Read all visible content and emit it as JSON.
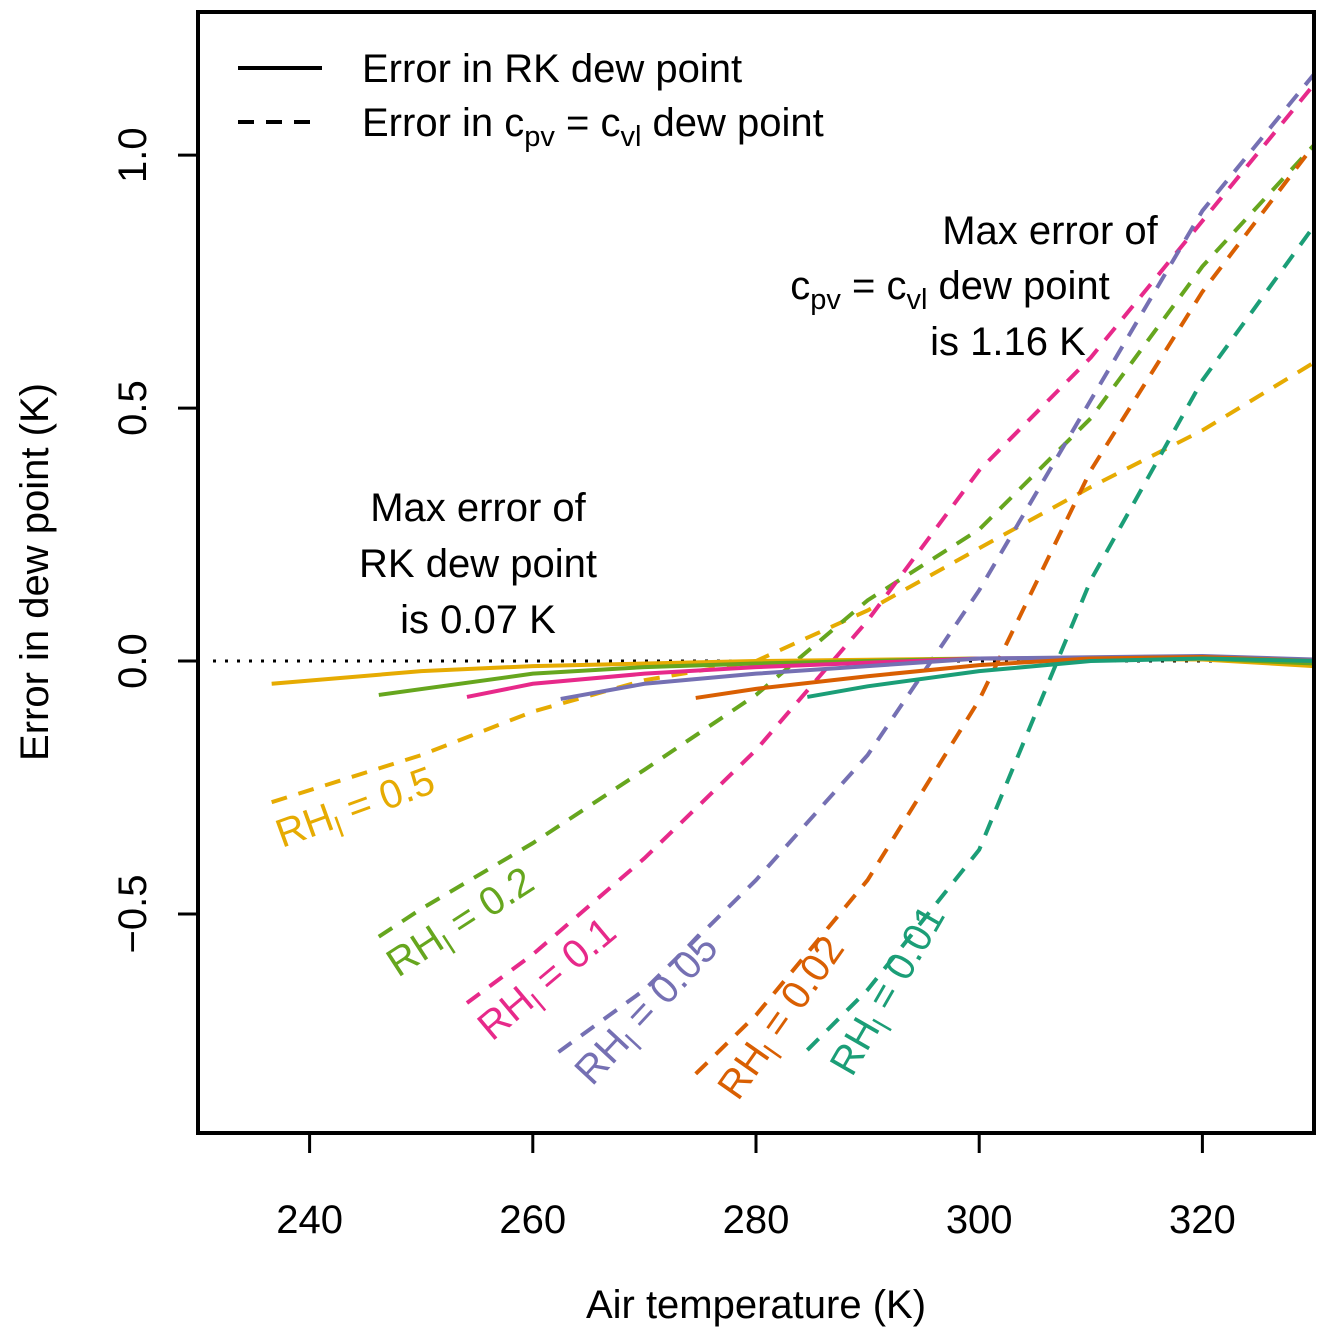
{
  "chart_data": {
    "type": "line",
    "x_label": "Air temperature (K)",
    "y_label": "Error in dew point (K)",
    "xlim": [
      230,
      330
    ],
    "ylim": [
      -0.933,
      1.283
    ],
    "xticks": [
      240,
      260,
      280,
      300,
      320
    ],
    "yticks": [
      {
        "value": -0.5,
        "label": "−0.5"
      },
      {
        "value": 0,
        "label": "0.0"
      },
      {
        "value": 0.5,
        "label": "0.5"
      },
      {
        "value": 1,
        "label": "1.0"
      }
    ],
    "reference_line": 0,
    "legend": [
      {
        "text": [
          "Error in RK dew point"
        ],
        "dashed": false
      },
      {
        "text": [
          "Error in c",
          "pv",
          " = c",
          "vl",
          " dew point"
        ],
        "dashed": true
      }
    ],
    "annotations": [
      {
        "lines": [
          [
            "Max error of"
          ],
          [
            "RK dew point"
          ],
          [
            "is 0.07 K"
          ]
        ]
      },
      {
        "lines": [
          [
            "Max error of"
          ],
          [
            "c",
            "pv",
            " = c",
            "vl",
            " dew point"
          ],
          [
            "is 1.16 K"
          ]
        ]
      }
    ],
    "groups": [
      {
        "label": [
          "RH",
          "l",
          " = 0.5"
        ],
        "color": "#E6AB02",
        "rk": {
          "x": [
            236.6,
            250,
            260,
            280,
            300,
            320,
            330
          ],
          "values": [
            -0.045,
            -0.02,
            -0.01,
            0.0,
            0.005,
            0.003,
            -0.01
          ]
        },
        "dashed": {
          "x": [
            236.6,
            250,
            260,
            270,
            280,
            290,
            300,
            310,
            320,
            330
          ],
          "values": [
            -0.279,
            -0.186,
            -0.1,
            -0.038,
            0.0,
            0.1,
            0.223,
            0.344,
            0.456,
            0.59
          ]
        }
      },
      {
        "label": [
          "RH",
          "l",
          " = 0.2"
        ],
        "color": "#66A61E",
        "rk": {
          "x": [
            246.2,
            260,
            270,
            280,
            300,
            320,
            330
          ],
          "values": [
            -0.067,
            -0.025,
            -0.012,
            -0.005,
            0.005,
            0.005,
            -0.005
          ]
        },
        "dashed": {
          "x": [
            246.2,
            250,
            260,
            270,
            280,
            290,
            300,
            310,
            320,
            330
          ],
          "values": [
            -0.545,
            -0.49,
            -0.36,
            -0.215,
            -0.067,
            0.12,
            0.26,
            0.48,
            0.78,
            1.02
          ]
        }
      },
      {
        "label": [
          "RH",
          "l",
          " = 0.1"
        ],
        "color": "#E7298A",
        "rk": {
          "x": [
            254.1,
            260,
            270,
            280,
            300,
            320,
            330
          ],
          "values": [
            -0.071,
            -0.045,
            -0.025,
            -0.012,
            0.005,
            0.008,
            0.0
          ]
        },
        "dashed": {
          "x": [
            254.1,
            260,
            270,
            280,
            290,
            300,
            310,
            320,
            330
          ],
          "values": [
            -0.676,
            -0.58,
            -0.39,
            -0.176,
            0.08,
            0.377,
            0.6,
            0.87,
            1.14
          ]
        }
      },
      {
        "label": [
          "RH",
          "l",
          " = 0.05"
        ],
        "color": "#7570B3",
        "rk": {
          "x": [
            262.5,
            270,
            280,
            290,
            300,
            320,
            330
          ],
          "values": [
            -0.075,
            -0.045,
            -0.025,
            -0.01,
            0.005,
            0.01,
            0.003
          ]
        },
        "dashed": {
          "x": [
            262.3,
            270,
            280,
            290,
            300,
            310,
            320,
            330
          ],
          "values": [
            -0.773,
            -0.65,
            -0.433,
            -0.186,
            0.14,
            0.516,
            0.89,
            1.16
          ]
        }
      },
      {
        "label": [
          "RH",
          "l",
          " = 0.02"
        ],
        "color": "#D95F02",
        "rk": {
          "x": [
            274.6,
            280,
            290,
            300,
            310,
            320,
            330
          ],
          "values": [
            -0.073,
            -0.055,
            -0.03,
            -0.008,
            0.005,
            0.008,
            0.0
          ]
        },
        "dashed": {
          "x": [
            274.6,
            280,
            290,
            300,
            310,
            320,
            330
          ],
          "values": [
            -0.816,
            -0.7,
            -0.433,
            -0.077,
            0.377,
            0.73,
            1.02
          ]
        }
      },
      {
        "label": [
          "RH",
          "l",
          " = 0.01"
        ],
        "color": "#1B9E77",
        "rk": {
          "x": [
            284.6,
            290,
            300,
            310,
            320,
            330
          ],
          "values": [
            -0.071,
            -0.05,
            -0.02,
            0.0,
            0.005,
            0.0
          ]
        },
        "dashed": {
          "x": [
            284.6,
            290,
            300,
            310,
            320,
            330
          ],
          "values": [
            -0.769,
            -0.65,
            -0.373,
            0.16,
            0.555,
            0.86
          ]
        }
      }
    ]
  }
}
